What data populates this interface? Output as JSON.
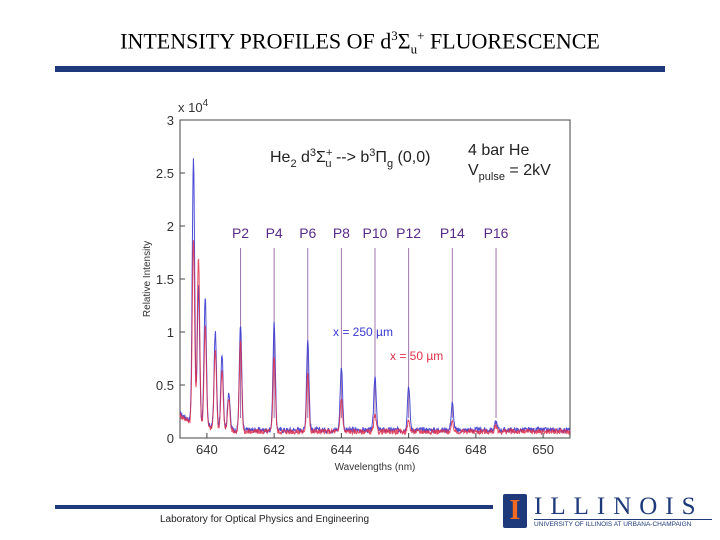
{
  "slide": {
    "title_main": "INTENSITY PROFILES OF d",
    "title_sup1": "3",
    "title_sigma": "Σ",
    "title_sub": "u",
    "title_sup2": "+",
    "title_end": " FLUORESCENCE",
    "footer": "Laboratory for Optical Physics and Engineering",
    "logo_word": "ILLINOIS",
    "logo_letter": "I",
    "logo_subtitle": "UNIVERSITY OF ILLINOIS AT URBANA-CHAMPAIGN"
  },
  "chart_data": {
    "type": "line",
    "xlabel": "Wavelengths (nm)",
    "ylabel": "Relative Intensity",
    "xlim": [
      639.2,
      650.8
    ],
    "ylim": [
      0,
      3
    ],
    "x_ticks": [
      "640",
      "642",
      "644",
      "646",
      "648",
      "650"
    ],
    "y_ticks": [
      "0",
      "0.5",
      "1",
      "1.5",
      "2",
      "2.5",
      "3"
    ],
    "y_exponent": "x 10",
    "y_exponent_power": "4",
    "annotations": {
      "transition_he2": "He",
      "transition_he2_sub": "2",
      "transition_upper": " d",
      "transition_upper_sup": "3",
      "transition_sigma": "Σ",
      "transition_sigma_sub": "u",
      "transition_sigma_sup": "+",
      "transition_arrow": " --> b",
      "transition_lower_sup": "3",
      "transition_pi": "Π",
      "transition_pi_sub": "g",
      "transition_band": " (0,0)",
      "pressure": "4 bar He",
      "vpulse": "V",
      "vpulse_sub": "pulse",
      "vpulse_val": " = 2kV"
    },
    "branch_labels": [
      {
        "label": "P2",
        "x": 641.0
      },
      {
        "label": "P4",
        "x": 642.0
      },
      {
        "label": "P6",
        "x": 643.0
      },
      {
        "label": "P8",
        "x": 644.0
      },
      {
        "label": "P10",
        "x": 645.0
      },
      {
        "label": "P12",
        "x": 646.0
      },
      {
        "label": "P14",
        "x": 647.3
      },
      {
        "label": "P16",
        "x": 648.6
      }
    ],
    "series": [
      {
        "name": "x = 250 µm",
        "color": "#3a3ad0",
        "peaks": [
          {
            "x": 639.6,
            "y": 2.5
          },
          {
            "x": 639.75,
            "y": 1.3
          },
          {
            "x": 639.95,
            "y": 1.2
          },
          {
            "x": 640.25,
            "y": 0.9
          },
          {
            "x": 640.45,
            "y": 0.7
          },
          {
            "x": 640.65,
            "y": 0.35
          },
          {
            "x": 641.0,
            "y": 1.0
          },
          {
            "x": 642.0,
            "y": 1.0
          },
          {
            "x": 643.0,
            "y": 0.85
          },
          {
            "x": 644.0,
            "y": 0.6
          },
          {
            "x": 645.0,
            "y": 0.52
          },
          {
            "x": 646.0,
            "y": 0.42
          },
          {
            "x": 647.3,
            "y": 0.25
          },
          {
            "x": 648.6,
            "y": 0.08
          }
        ]
      },
      {
        "name": "x = 50 µm",
        "color": "#e0304a",
        "peaks": [
          {
            "x": 639.6,
            "y": 1.75
          },
          {
            "x": 639.75,
            "y": 1.6
          },
          {
            "x": 639.95,
            "y": 0.95
          },
          {
            "x": 640.25,
            "y": 0.75
          },
          {
            "x": 640.45,
            "y": 0.55
          },
          {
            "x": 640.65,
            "y": 0.3
          },
          {
            "x": 641.0,
            "y": 0.85
          },
          {
            "x": 642.0,
            "y": 0.72
          },
          {
            "x": 643.0,
            "y": 0.55
          },
          {
            "x": 644.0,
            "y": 0.32
          },
          {
            "x": 645.0,
            "y": 0.15
          },
          {
            "x": 646.0,
            "y": 0.1
          },
          {
            "x": 647.3,
            "y": 0.08
          },
          {
            "x": 648.6,
            "y": 0.05
          }
        ]
      }
    ]
  }
}
